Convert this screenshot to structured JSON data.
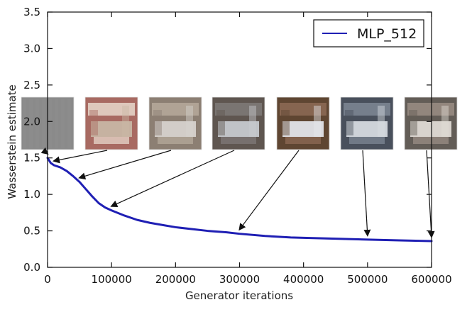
{
  "chart_data": {
    "type": "line",
    "xlabel": "Generator iterations",
    "ylabel": "Wasserstein estimate",
    "xlim": [
      0,
      600000
    ],
    "ylim": [
      0.0,
      3.5
    ],
    "x_ticks": [
      0,
      100000,
      200000,
      300000,
      400000,
      500000,
      600000
    ],
    "y_ticks": [
      0.0,
      0.5,
      1.0,
      1.5,
      2.0,
      2.5,
      3.0,
      3.5
    ],
    "grid": false,
    "legend": {
      "position": "top-right",
      "entries": [
        "MLP_512"
      ]
    },
    "series": [
      {
        "name": "MLP_512",
        "color": "#1f1fb4",
        "x": [
          0,
          5000,
          10000,
          20000,
          30000,
          40000,
          50000,
          60000,
          70000,
          80000,
          90000,
          100000,
          120000,
          140000,
          160000,
          180000,
          200000,
          220000,
          250000,
          280000,
          300000,
          340000,
          380000,
          420000,
          460000,
          500000,
          550000,
          600000
        ],
        "y": [
          1.5,
          1.43,
          1.4,
          1.37,
          1.32,
          1.25,
          1.17,
          1.07,
          0.97,
          0.88,
          0.82,
          0.78,
          0.71,
          0.65,
          0.61,
          0.58,
          0.55,
          0.53,
          0.5,
          0.48,
          0.46,
          0.43,
          0.41,
          0.4,
          0.39,
          0.38,
          0.37,
          0.36
        ]
      }
    ],
    "annotations": {
      "sample_images": [
        {
          "x": 0,
          "y": 1.5,
          "colors": {
            "base": "#8a8a8a"
          }
        },
        {
          "x": 10000,
          "y": 1.4,
          "colors": {
            "base": "#a86a62",
            "accent": "#c9b8a6",
            "light": "#e8d8cc"
          }
        },
        {
          "x": 50000,
          "y": 1.17,
          "colors": {
            "base": "#8c7f73",
            "accent": "#d8d4cf",
            "light": "#b6a99b"
          }
        },
        {
          "x": 100000,
          "y": 0.78,
          "colors": {
            "base": "#5f5650",
            "accent": "#c9ccd1",
            "light": "#7f7a78"
          }
        },
        {
          "x": 300000,
          "y": 0.46,
          "colors": {
            "base": "#5f4632",
            "accent": "#e6e8ee",
            "light": "#8d6b56"
          }
        },
        {
          "x": 500000,
          "y": 0.38,
          "colors": {
            "base": "#49505c",
            "accent": "#d9dde3",
            "light": "#7e8794"
          }
        },
        {
          "x": 600000,
          "y": 0.36,
          "colors": {
            "base": "#635d57",
            "accent": "#e2ddd7",
            "light": "#9a8d84"
          }
        }
      ]
    }
  }
}
